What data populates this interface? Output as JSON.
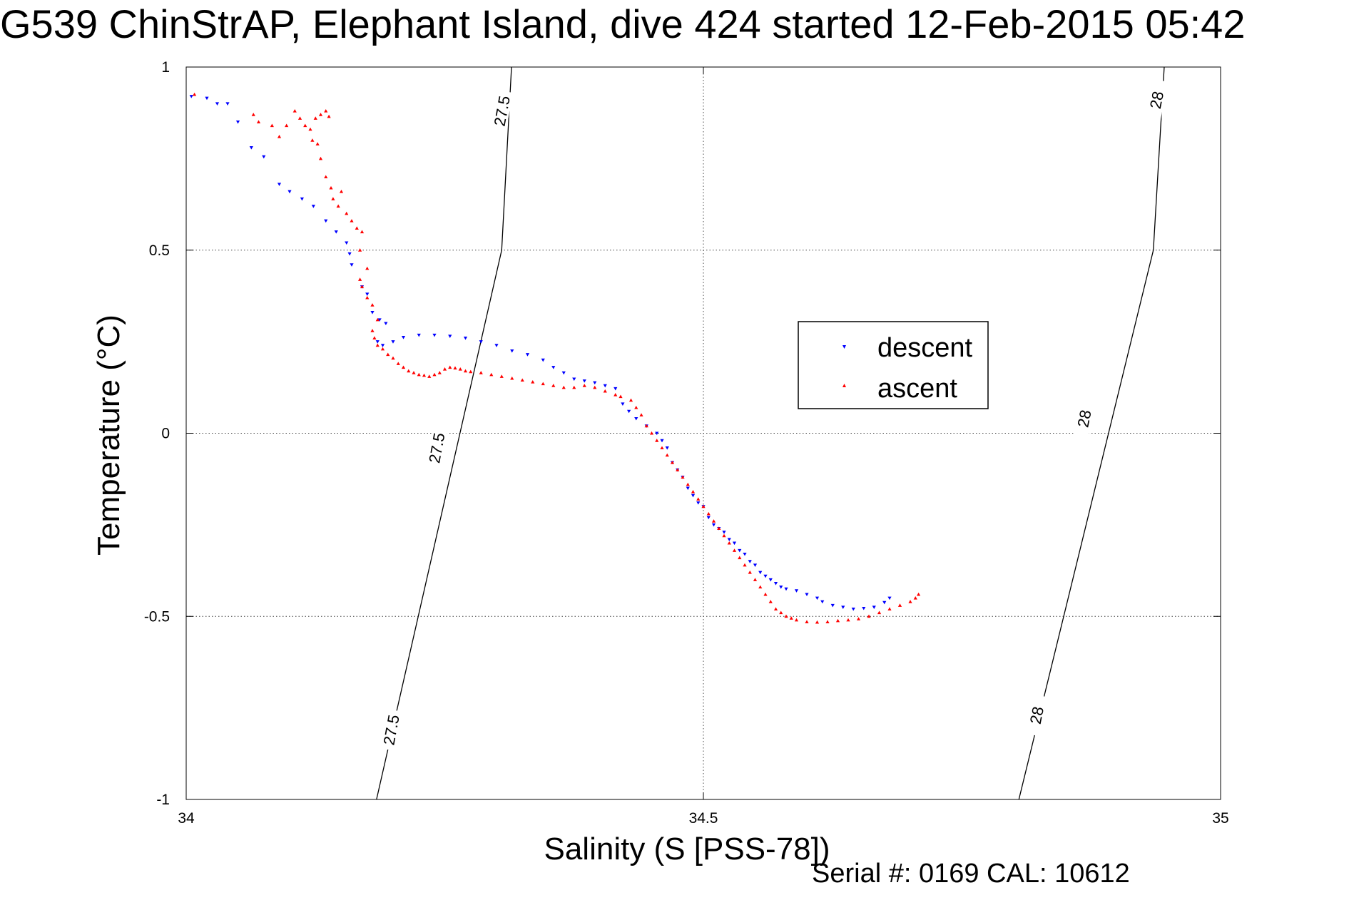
{
  "chart_data": {
    "type": "scatter",
    "title": "G539 ChinStrAP, Elephant Island, dive 424 started 12-Feb-2015 05:42",
    "xlabel": "Salinity (S [PSS-78])",
    "ylabel": "Temperature (°C)",
    "xlim": [
      34,
      35
    ],
    "ylim": [
      -1,
      1
    ],
    "x_ticks": [
      "34",
      "34.5",
      "35"
    ],
    "y_ticks": [
      "1",
      "0.5",
      "0",
      "-0.5",
      "-1"
    ],
    "grid": true,
    "legend_position": "right-center",
    "footnote": "Serial #: 0169 CAL: 10612",
    "isopycnals": [
      {
        "label": "27.5",
        "points": [
          [
            34.184,
            -1.0
          ],
          [
            34.305,
            0.5
          ],
          [
            34.3145,
            1.0
          ]
        ],
        "label_positions": [
          [
            34.198,
            -0.81
          ],
          [
            34.242,
            -0.04
          ],
          [
            34.305,
            0.88
          ]
        ]
      },
      {
        "label": "28",
        "points": [
          [
            34.805,
            -1.0
          ],
          [
            34.935,
            0.5
          ],
          [
            34.9455,
            1.0
          ]
        ],
        "label_positions": [
          [
            34.822,
            -0.77
          ],
          [
            34.868,
            0.04
          ],
          [
            34.938,
            0.91
          ]
        ]
      }
    ],
    "series": [
      {
        "name": "descent",
        "marker": "triangle-down",
        "color": "#0000ff",
        "points": [
          [
            34.005,
            0.92
          ],
          [
            34.02,
            0.915
          ],
          [
            34.03,
            0.9
          ],
          [
            34.04,
            0.9
          ],
          [
            34.05,
            0.85
          ],
          [
            34.063,
            0.78
          ],
          [
            34.075,
            0.755
          ],
          [
            34.09,
            0.68
          ],
          [
            34.1,
            0.66
          ],
          [
            34.112,
            0.64
          ],
          [
            34.123,
            0.62
          ],
          [
            34.135,
            0.58
          ],
          [
            34.145,
            0.55
          ],
          [
            34.155,
            0.52
          ],
          [
            34.158,
            0.49
          ],
          [
            34.16,
            0.46
          ],
          [
            34.17,
            0.4
          ],
          [
            34.175,
            0.38
          ],
          [
            34.18,
            0.33
          ],
          [
            34.187,
            0.31
          ],
          [
            34.193,
            0.3
          ],
          [
            34.185,
            0.25
          ],
          [
            34.19,
            0.24
          ],
          [
            34.2,
            0.25
          ],
          [
            34.21,
            0.262
          ],
          [
            34.225,
            0.268
          ],
          [
            34.24,
            0.268
          ],
          [
            34.255,
            0.265
          ],
          [
            34.27,
            0.26
          ],
          [
            34.285,
            0.25
          ],
          [
            34.3,
            0.24
          ],
          [
            34.315,
            0.225
          ],
          [
            34.33,
            0.215
          ],
          [
            34.345,
            0.2
          ],
          [
            34.355,
            0.18
          ],
          [
            34.365,
            0.165
          ],
          [
            34.375,
            0.148
          ],
          [
            34.385,
            0.143
          ],
          [
            34.395,
            0.138
          ],
          [
            34.405,
            0.13
          ],
          [
            34.415,
            0.122
          ],
          [
            34.422,
            0.08
          ],
          [
            34.428,
            0.06
          ],
          [
            34.435,
            0.04
          ],
          [
            34.445,
            0.02
          ],
          [
            34.455,
            0.0
          ],
          [
            34.46,
            -0.02
          ],
          [
            34.465,
            -0.04
          ],
          [
            34.47,
            -0.08
          ],
          [
            34.475,
            -0.1
          ],
          [
            34.48,
            -0.12
          ],
          [
            34.485,
            -0.15
          ],
          [
            34.49,
            -0.17
          ],
          [
            34.495,
            -0.19
          ],
          [
            34.5,
            -0.2
          ],
          [
            34.505,
            -0.23
          ],
          [
            34.51,
            -0.25
          ],
          [
            34.515,
            -0.26
          ],
          [
            34.52,
            -0.27
          ],
          [
            34.525,
            -0.29
          ],
          [
            34.53,
            -0.3
          ],
          [
            34.535,
            -0.32
          ],
          [
            34.54,
            -0.33
          ],
          [
            34.545,
            -0.35
          ],
          [
            34.55,
            -0.36
          ],
          [
            34.555,
            -0.38
          ],
          [
            34.56,
            -0.39
          ],
          [
            34.565,
            -0.4
          ],
          [
            34.57,
            -0.41
          ],
          [
            34.575,
            -0.42
          ],
          [
            34.58,
            -0.425
          ],
          [
            34.59,
            -0.43
          ],
          [
            34.6,
            -0.44
          ],
          [
            34.61,
            -0.45
          ],
          [
            34.615,
            -0.46
          ],
          [
            34.625,
            -0.47
          ],
          [
            34.635,
            -0.475
          ],
          [
            34.645,
            -0.48
          ],
          [
            34.655,
            -0.478
          ],
          [
            34.665,
            -0.475
          ],
          [
            34.675,
            -0.462
          ],
          [
            34.68,
            -0.45
          ]
        ]
      },
      {
        "name": "ascent",
        "marker": "triangle-up",
        "color": "#ff0000",
        "points": [
          [
            34.008,
            0.925
          ],
          [
            34.065,
            0.87
          ],
          [
            34.07,
            0.85
          ],
          [
            34.083,
            0.84
          ],
          [
            34.09,
            0.81
          ],
          [
            34.097,
            0.84
          ],
          [
            34.105,
            0.88
          ],
          [
            34.11,
            0.86
          ],
          [
            34.115,
            0.84
          ],
          [
            34.12,
            0.83
          ],
          [
            34.125,
            0.86
          ],
          [
            34.13,
            0.87
          ],
          [
            34.135,
            0.88
          ],
          [
            34.138,
            0.865
          ],
          [
            34.122,
            0.8
          ],
          [
            34.127,
            0.79
          ],
          [
            34.13,
            0.75
          ],
          [
            34.135,
            0.7
          ],
          [
            34.14,
            0.67
          ],
          [
            34.142,
            0.64
          ],
          [
            34.147,
            0.62
          ],
          [
            34.15,
            0.66
          ],
          [
            34.155,
            0.6
          ],
          [
            34.16,
            0.58
          ],
          [
            34.165,
            0.56
          ],
          [
            34.17,
            0.55
          ],
          [
            34.168,
            0.5
          ],
          [
            34.175,
            0.45
          ],
          [
            34.168,
            0.42
          ],
          [
            34.17,
            0.4
          ],
          [
            34.175,
            0.37
          ],
          [
            34.18,
            0.35
          ],
          [
            34.185,
            0.31
          ],
          [
            34.18,
            0.28
          ],
          [
            34.182,
            0.26
          ],
          [
            34.185,
            0.24
          ],
          [
            34.19,
            0.23
          ],
          [
            34.195,
            0.215
          ],
          [
            34.2,
            0.205
          ],
          [
            34.205,
            0.19
          ],
          [
            34.21,
            0.18
          ],
          [
            34.215,
            0.17
          ],
          [
            34.22,
            0.165
          ],
          [
            34.225,
            0.16
          ],
          [
            34.23,
            0.158
          ],
          [
            34.235,
            0.155
          ],
          [
            34.24,
            0.16
          ],
          [
            34.245,
            0.165
          ],
          [
            34.25,
            0.175
          ],
          [
            34.255,
            0.18
          ],
          [
            34.26,
            0.178
          ],
          [
            34.265,
            0.175
          ],
          [
            34.27,
            0.17
          ],
          [
            34.275,
            0.168
          ],
          [
            34.285,
            0.165
          ],
          [
            34.295,
            0.16
          ],
          [
            34.305,
            0.155
          ],
          [
            34.315,
            0.15
          ],
          [
            34.325,
            0.145
          ],
          [
            34.335,
            0.14
          ],
          [
            34.345,
            0.135
          ],
          [
            34.355,
            0.13
          ],
          [
            34.365,
            0.125
          ],
          [
            34.375,
            0.125
          ],
          [
            34.385,
            0.13
          ],
          [
            34.395,
            0.125
          ],
          [
            34.405,
            0.115
          ],
          [
            34.415,
            0.105
          ],
          [
            34.42,
            0.1
          ],
          [
            34.43,
            0.09
          ],
          [
            34.435,
            0.07
          ],
          [
            34.44,
            0.05
          ],
          [
            34.445,
            0.02
          ],
          [
            34.45,
            0.0
          ],
          [
            34.455,
            -0.02
          ],
          [
            34.46,
            -0.04
          ],
          [
            34.465,
            -0.06
          ],
          [
            34.47,
            -0.08
          ],
          [
            34.475,
            -0.1
          ],
          [
            34.48,
            -0.12
          ],
          [
            34.485,
            -0.14
          ],
          [
            34.49,
            -0.16
          ],
          [
            34.495,
            -0.18
          ],
          [
            34.5,
            -0.2
          ],
          [
            34.505,
            -0.22
          ],
          [
            34.51,
            -0.24
          ],
          [
            34.515,
            -0.26
          ],
          [
            34.52,
            -0.28
          ],
          [
            34.525,
            -0.3
          ],
          [
            34.53,
            -0.32
          ],
          [
            34.535,
            -0.34
          ],
          [
            34.54,
            -0.36
          ],
          [
            34.545,
            -0.38
          ],
          [
            34.55,
            -0.4
          ],
          [
            34.555,
            -0.42
          ],
          [
            34.56,
            -0.44
          ],
          [
            34.565,
            -0.46
          ],
          [
            34.57,
            -0.48
          ],
          [
            34.575,
            -0.49
          ],
          [
            34.58,
            -0.5
          ],
          [
            34.585,
            -0.505
          ],
          [
            34.59,
            -0.51
          ],
          [
            34.6,
            -0.515
          ],
          [
            34.61,
            -0.516
          ],
          [
            34.62,
            -0.515
          ],
          [
            34.63,
            -0.512
          ],
          [
            34.64,
            -0.51
          ],
          [
            34.65,
            -0.507
          ],
          [
            34.66,
            -0.5
          ],
          [
            34.67,
            -0.49
          ],
          [
            34.68,
            -0.48
          ],
          [
            34.69,
            -0.47
          ],
          [
            34.7,
            -0.46
          ],
          [
            34.705,
            -0.45
          ],
          [
            34.708,
            -0.44
          ]
        ]
      }
    ]
  }
}
